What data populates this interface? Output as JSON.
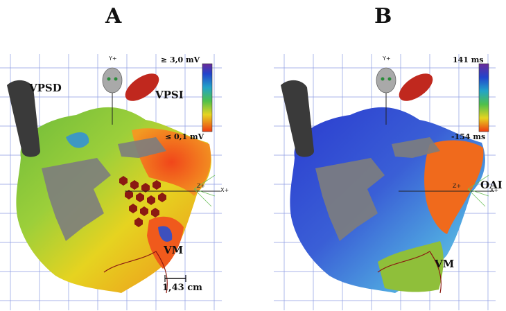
{
  "panels": [
    {
      "letter": "A",
      "labels": {
        "vpsd": "VPSD",
        "vpsi": "VPSI",
        "vm": "VM",
        "scale_max": "≥ 3,0 mV",
        "scale_min": "≤ 0,1 mV",
        "scale_bar": "1,43 cm",
        "axis_y": "Y+",
        "axis_z": "Z+",
        "axis_x": "X+"
      }
    },
    {
      "letter": "B",
      "labels": {
        "oai": "OAI",
        "vm": "VM",
        "scale_max": "141 ms",
        "scale_min": "-154 ms",
        "axis_y": "Y+",
        "axis_z": "Z+",
        "axis_x": "X+"
      }
    }
  ],
  "colors": {
    "grid": "#5b6fd6",
    "catheter": "#3a3a3a",
    "balloon": "#c0281e",
    "ablation": "#8b1a12"
  }
}
